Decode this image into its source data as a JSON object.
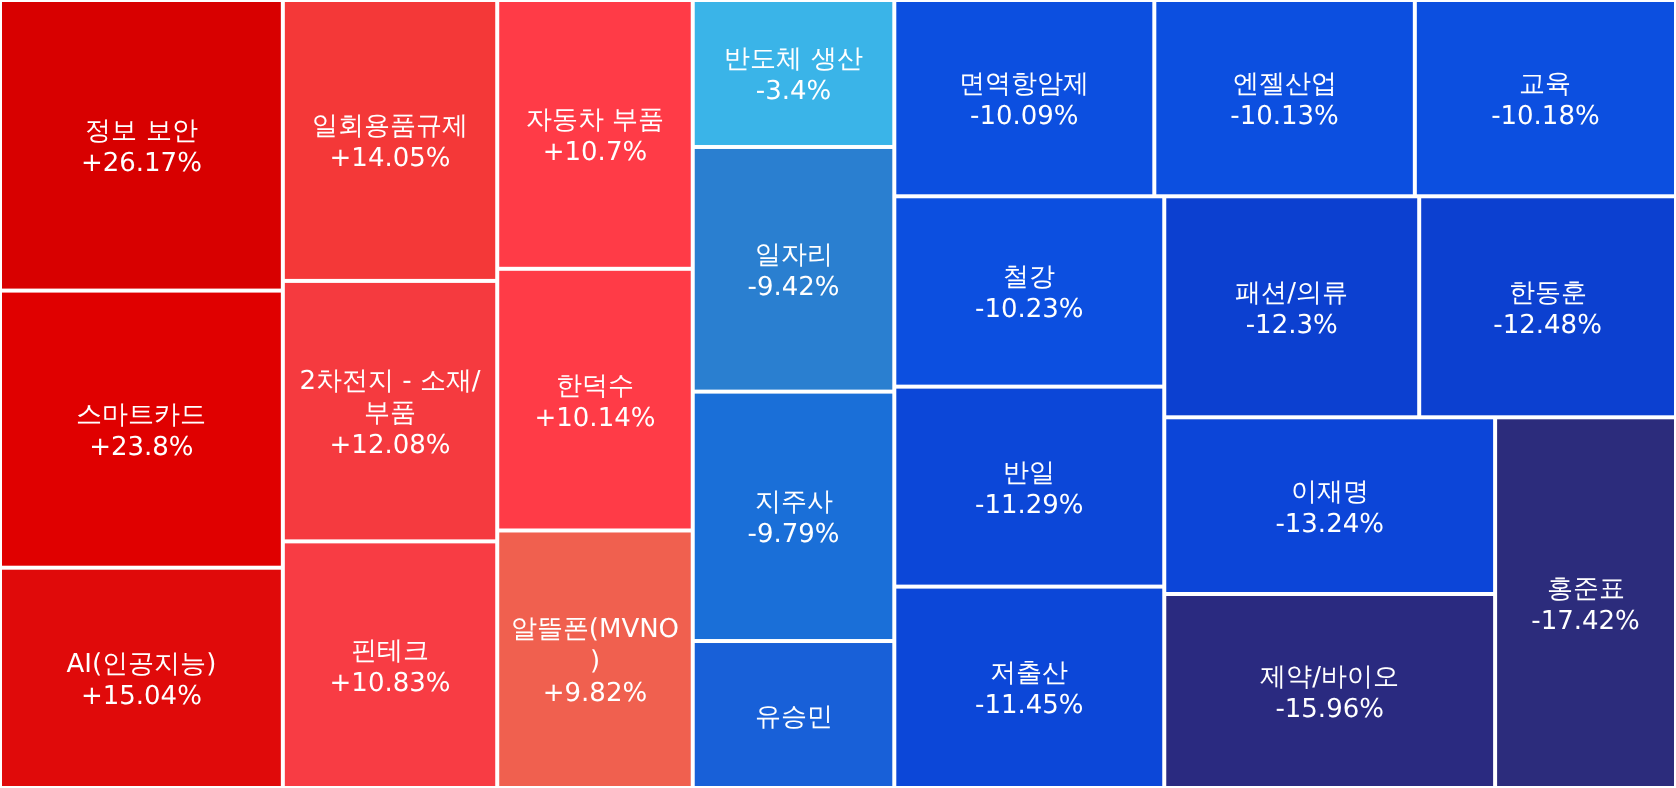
{
  "chart_data": {
    "type": "other",
    "categories": [
      "정보 보안",
      "스마트카드",
      "AI(인공지능)",
      "일회용품규제",
      "2차전지 - 소재/부품",
      "핀테크",
      "자동차 부품",
      "한덕수",
      "알뜰폰(MVNO)",
      "반도체 생산",
      "일자리",
      "지주사",
      "유승민",
      "면역항암제",
      "엔젤산업",
      "교육",
      "철강",
      "반일",
      "저출산",
      "패션/의류",
      "한동훈",
      "이재명",
      "제약/바이오",
      "홍준표"
    ],
    "values": [
      26.17,
      23.8,
      15.04,
      14.05,
      12.08,
      10.83,
      10.7,
      10.14,
      9.82,
      -3.4,
      -9.42,
      -9.79,
      null,
      -10.09,
      -10.13,
      -10.18,
      -10.23,
      -11.29,
      -11.45,
      -12.3,
      -12.48,
      -13.24,
      -15.96,
      -17.42
    ],
    "value_labels": [
      "+26.17%",
      "+23.8%",
      "+15.04%",
      "+14.05%",
      "+12.08%",
      "+10.83%",
      "+10.7%",
      "+10.14%",
      "+9.82%",
      "-3.4%",
      "-9.42%",
      "-9.79%",
      null,
      "-10.09%",
      "-10.13%",
      "-10.18%",
      "-10.23%",
      "-11.29%",
      "-11.45%",
      "-12.3%",
      "-12.48%",
      "-13.24%",
      "-15.96%",
      "-17.42%"
    ],
    "colors": [
      "#d80000",
      "#e00000",
      "#e00a0a",
      "#f43838",
      "#f53a3f",
      "#f83c44",
      "#ff3b47",
      "#ff3b47",
      "#f0604f",
      "#3ab4e8",
      "#2a7fd0",
      "#1a6fd8",
      "#1860d8",
      "#0c4fe0",
      "#0c4fe0",
      "#0c4fe0",
      "#0c4fe0",
      "#0c47d8",
      "#0c47d8",
      "#0c40d0",
      "#0c40d0",
      "#0c45d8",
      "#2a2a80",
      "#2c2c7c"
    ]
  }
}
